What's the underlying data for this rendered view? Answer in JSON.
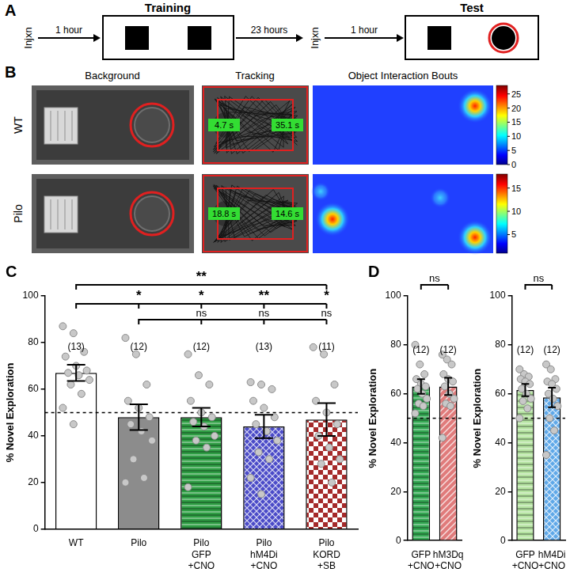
{
  "diagram": {
    "panel_label": "A",
    "injection": "Injxn",
    "phases": [
      "Training",
      "Test"
    ],
    "delays": [
      "1 hour",
      "23 hours",
      "1 hour"
    ]
  },
  "images": {
    "panel_label": "B",
    "columns": [
      "Background",
      "Tracking",
      "Object Interaction Bouts"
    ],
    "rows": [
      {
        "label": "WT",
        "times": [
          "4.7 s",
          "35.1 s"
        ],
        "colorbar": {
          "range": [
            0,
            28
          ],
          "ticks": [
            0,
            5,
            10,
            15,
            20,
            25
          ]
        }
      },
      {
        "label": "Pilo",
        "times": [
          "18.8 s",
          "14.6 s"
        ],
        "colorbar": {
          "range": [
            1,
            18
          ],
          "ticks": [
            5,
            10,
            15
          ]
        }
      }
    ]
  },
  "chart_data": [
    {
      "panel_label": "C",
      "type": "bar",
      "categories": [
        "WT",
        "Pilo",
        "Pilo\nGFP\n+CNO",
        "Pilo\nhM4Di\n+CNO",
        "Pilo\nKORD\n+SB"
      ],
      "values": [
        67,
        48,
        48,
        44,
        47
      ],
      "errors": [
        3.5,
        5.5,
        4,
        5,
        7
      ],
      "points": [
        [
          87,
          84,
          76,
          74,
          70,
          68,
          67,
          66,
          64,
          62,
          58,
          52,
          45
        ],
        [
          82,
          75,
          62,
          55,
          52,
          48,
          45,
          42,
          38,
          30,
          22,
          20
        ],
        [
          75,
          66,
          62,
          55,
          50,
          48,
          46,
          44,
          40,
          38,
          35,
          18
        ],
        [
          63,
          62,
          60,
          55,
          52,
          48,
          45,
          42,
          38,
          33,
          30,
          22,
          15
        ],
        [
          78,
          75,
          62,
          55,
          50,
          45,
          40,
          35,
          30,
          28,
          20
        ]
      ],
      "n_labels": [
        "(13)",
        "(12)",
        "(12)",
        "(13)",
        "(11)"
      ],
      "colors": [
        "#ffffff",
        "#8c8c8c",
        "#2f9e44",
        "#4b4bc8",
        "#a52a2a"
      ],
      "ylabel": "% Novel Exploration",
      "ylim": [
        0,
        100
      ],
      "yticks": [
        0,
        20,
        40,
        60,
        80,
        100
      ],
      "grid": false,
      "reference_line": 50,
      "comparisons": [
        {
          "from": 0,
          "ticks": [
            4
          ],
          "texts": [
            "**"
          ]
        },
        {
          "from": 0,
          "ticks": [
            1,
            2,
            3,
            4
          ],
          "texts": [
            "*",
            "*",
            "**",
            "*"
          ]
        },
        {
          "from": 1,
          "ticks": [
            2,
            3,
            4
          ],
          "texts": [
            "ns",
            "ns",
            "ns"
          ]
        }
      ]
    },
    {
      "panel_label": "D",
      "type": "bar",
      "categories": [
        "GFP\n+CNO",
        "hM3Dq\n+CNO"
      ],
      "values": [
        63,
        63
      ],
      "errors": [
        3,
        3.5
      ],
      "points": [
        [
          80,
          72,
          68,
          66,
          64,
          63,
          62,
          60,
          58,
          56,
          55,
          52
        ],
        [
          76,
          74,
          72,
          68,
          66,
          65,
          63,
          60,
          58,
          56,
          55,
          42
        ]
      ],
      "n_labels": [
        "(12)",
        "(12)"
      ],
      "colors": [
        "#34a853",
        "#e07b7b"
      ],
      "ylabel": "% Novel Exploration",
      "ylim": [
        0,
        100
      ],
      "yticks": [
        0,
        20,
        40,
        60,
        80,
        100
      ],
      "grid": false,
      "reference_line": 50,
      "comparisons": [
        {
          "from": 0,
          "ticks": [
            1
          ],
          "texts": [
            "ns"
          ]
        }
      ]
    },
    {
      "type": "bar",
      "categories": [
        "GFP\n+CNO",
        "hM4Di\n+CNO"
      ],
      "values": [
        61.5,
        58.5
      ],
      "errors": [
        2.5,
        4
      ],
      "points": [
        [
          70,
          68,
          67,
          66,
          65,
          64,
          62,
          60,
          58,
          57,
          54,
          50
        ],
        [
          72,
          70,
          66,
          65,
          64,
          62,
          60,
          58,
          55,
          50,
          45,
          35
        ]
      ],
      "n_labels": [
        "(12)",
        "(12)"
      ],
      "colors": [
        "#b5e3a1",
        "#5fa8e8"
      ],
      "ylabel": "% Novel Exploration",
      "ylim": [
        0,
        100
      ],
      "yticks": [
        0,
        20,
        40,
        60,
        80,
        100
      ],
      "grid": false,
      "reference_line": 50,
      "comparisons": [
        {
          "from": 0,
          "ticks": [
            1
          ],
          "texts": [
            "ns"
          ]
        }
      ]
    }
  ]
}
